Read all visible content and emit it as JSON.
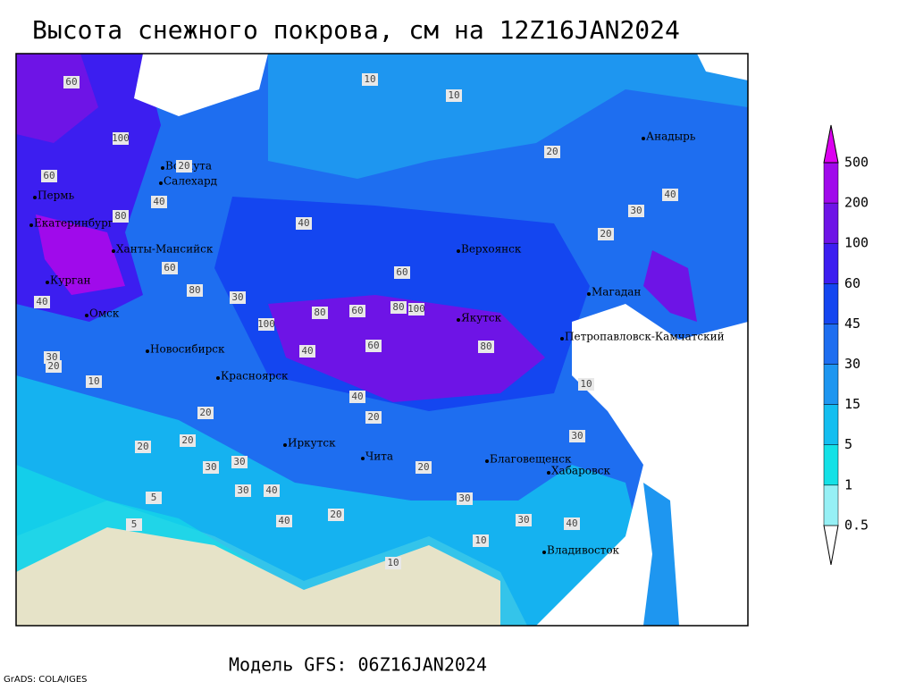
{
  "header": {
    "title": "Высота снежного покрова, см на 12Z16JAN2024"
  },
  "footer": {
    "model": "Модель GFS: 06Z16JAN2024",
    "credit": "GrADS: COLA/IGES"
  },
  "legend": {
    "levels": [
      0.5,
      1,
      5,
      15,
      30,
      45,
      60,
      100,
      200,
      500
    ],
    "colors": [
      "#ffffff",
      "#96f0f5",
      "#14e1e6",
      "#14bef0",
      "#1e96f0",
      "#1e6ef0",
      "#1446f0",
      "#3c1ef0",
      "#6e14e6",
      "#a00aeb",
      "#dc00f0"
    ]
  },
  "cities": [
    "Воркута",
    "Салехард",
    "Пермь",
    "Екатеринбург",
    "Ханты-Мансийск",
    "Курган",
    "Омск",
    "Новосибирск",
    "Красноярск",
    "Иркутск",
    "Чита",
    "Благовещенск",
    "Хабаровск",
    "Владивосток",
    "Верхоянск",
    "Якутск",
    "Магадан",
    "Петропавловск-Камчатский",
    "Анадырь"
  ],
  "contour_labels": [
    60,
    100,
    60,
    80,
    40,
    60,
    80,
    40,
    30,
    100,
    80,
    60,
    80,
    100,
    60,
    80,
    60,
    40,
    40,
    20,
    20,
    40,
    30,
    10,
    20,
    20,
    20,
    10,
    10,
    5,
    5,
    40,
    30,
    30,
    20,
    30,
    40,
    20,
    10,
    30,
    10,
    40,
    30,
    20,
    30,
    20,
    30,
    40,
    20,
    10
  ]
}
